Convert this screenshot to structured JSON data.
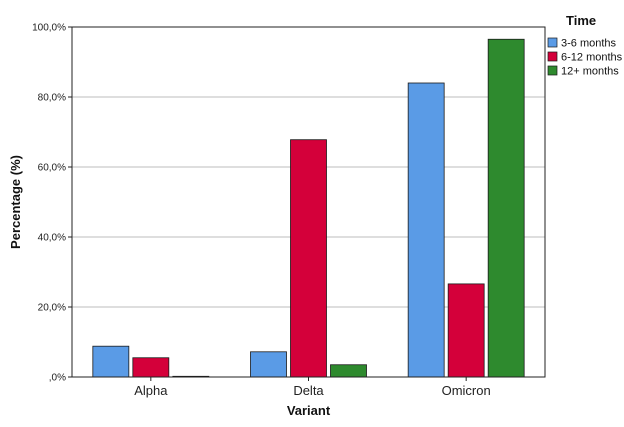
{
  "chart_data": {
    "type": "bar",
    "categories": [
      "Alpha",
      "Delta",
      "Omicron"
    ],
    "series": [
      {
        "name": "3-6 months",
        "color": "#5a9be6",
        "values": [
          8.8,
          7.2,
          84.0
        ]
      },
      {
        "name": "6-12 months",
        "color": "#d4003a",
        "values": [
          5.5,
          67.8,
          26.6
        ]
      },
      {
        "name": "12+ months",
        "color": "#2e8a2e",
        "values": [
          0.2,
          3.5,
          96.5
        ]
      }
    ],
    "xlabel": "Variant",
    "ylabel": "Percentage (%)",
    "ylim": [
      0,
      100
    ],
    "yticks": [
      "0",
      "20",
      "40",
      "60",
      "80",
      "100"
    ],
    "ytick_labels": [
      ",0%",
      "20,0%",
      "40,0%",
      "60,0%",
      "80,0%",
      "100,0%"
    ],
    "grid": "horizontal",
    "legend": {
      "title": "Time",
      "placement": "top-right"
    }
  }
}
